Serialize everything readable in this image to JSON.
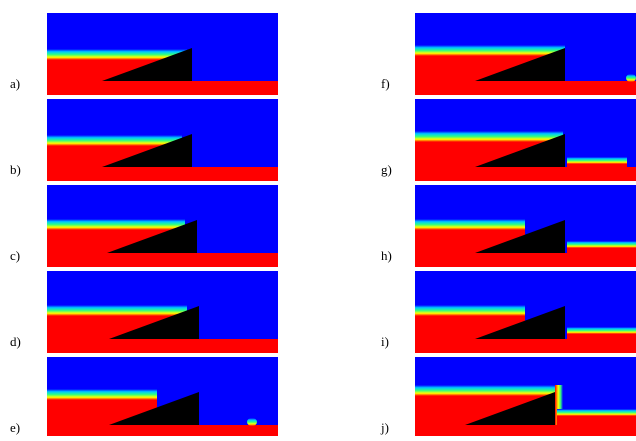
{
  "panels": [
    {
      "label": "a)"
    },
    {
      "label": "b)"
    },
    {
      "label": "c)"
    },
    {
      "label": "d)"
    },
    {
      "label": "e)"
    },
    {
      "label": "f)"
    },
    {
      "label": "g)"
    },
    {
      "label": "h)"
    },
    {
      "label": "i)"
    },
    {
      "label": "j)"
    }
  ]
}
